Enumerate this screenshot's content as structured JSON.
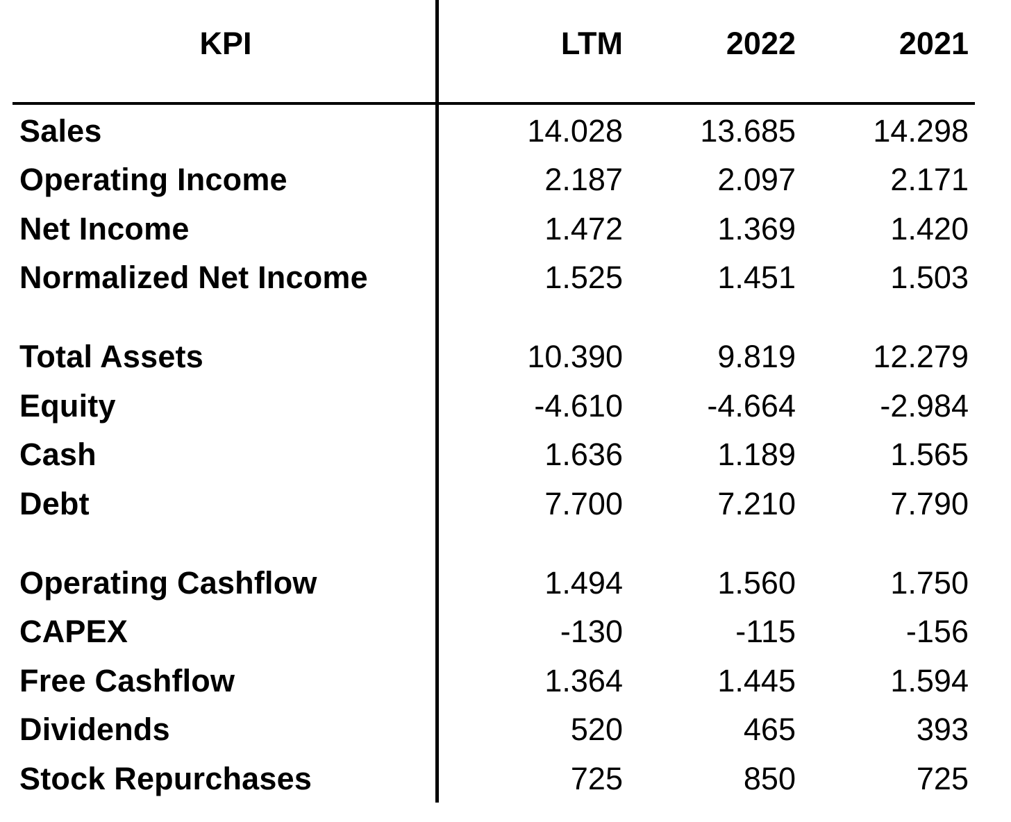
{
  "header": {
    "kpi": "KPI",
    "columns": [
      "LTM",
      "2022",
      "2021"
    ]
  },
  "rows": [
    {
      "label": "Sales",
      "values": [
        "14.028",
        "13.685",
        "14.298"
      ]
    },
    {
      "label": "Operating Income",
      "values": [
        "2.187",
        "2.097",
        "2.171"
      ]
    },
    {
      "label": "Net Income",
      "values": [
        "1.472",
        "1.369",
        "1.420"
      ]
    },
    {
      "label": "Normalized Net Income",
      "values": [
        "1.525",
        "1.451",
        "1.503"
      ]
    },
    {
      "label": "Total Assets",
      "values": [
        "10.390",
        "9.819",
        "12.279"
      ]
    },
    {
      "label": "Equity",
      "values": [
        "-4.610",
        "-4.664",
        "-2.984"
      ]
    },
    {
      "label": "Cash",
      "values": [
        "1.636",
        "1.189",
        "1.565"
      ]
    },
    {
      "label": "Debt",
      "values": [
        "7.700",
        "7.210",
        "7.790"
      ]
    },
    {
      "label": "Operating Cashflow",
      "values": [
        "1.494",
        "1.560",
        "1.750"
      ]
    },
    {
      "label": "CAPEX",
      "values": [
        "-130",
        "-115",
        "-156"
      ]
    },
    {
      "label": "Free Cashflow",
      "values": [
        "1.364",
        "1.445",
        "1.594"
      ]
    },
    {
      "label": "Dividends",
      "values": [
        "520",
        "465",
        "393"
      ]
    },
    {
      "label": "Stock Repurchases",
      "values": [
        "725",
        "850",
        "725"
      ]
    }
  ]
}
